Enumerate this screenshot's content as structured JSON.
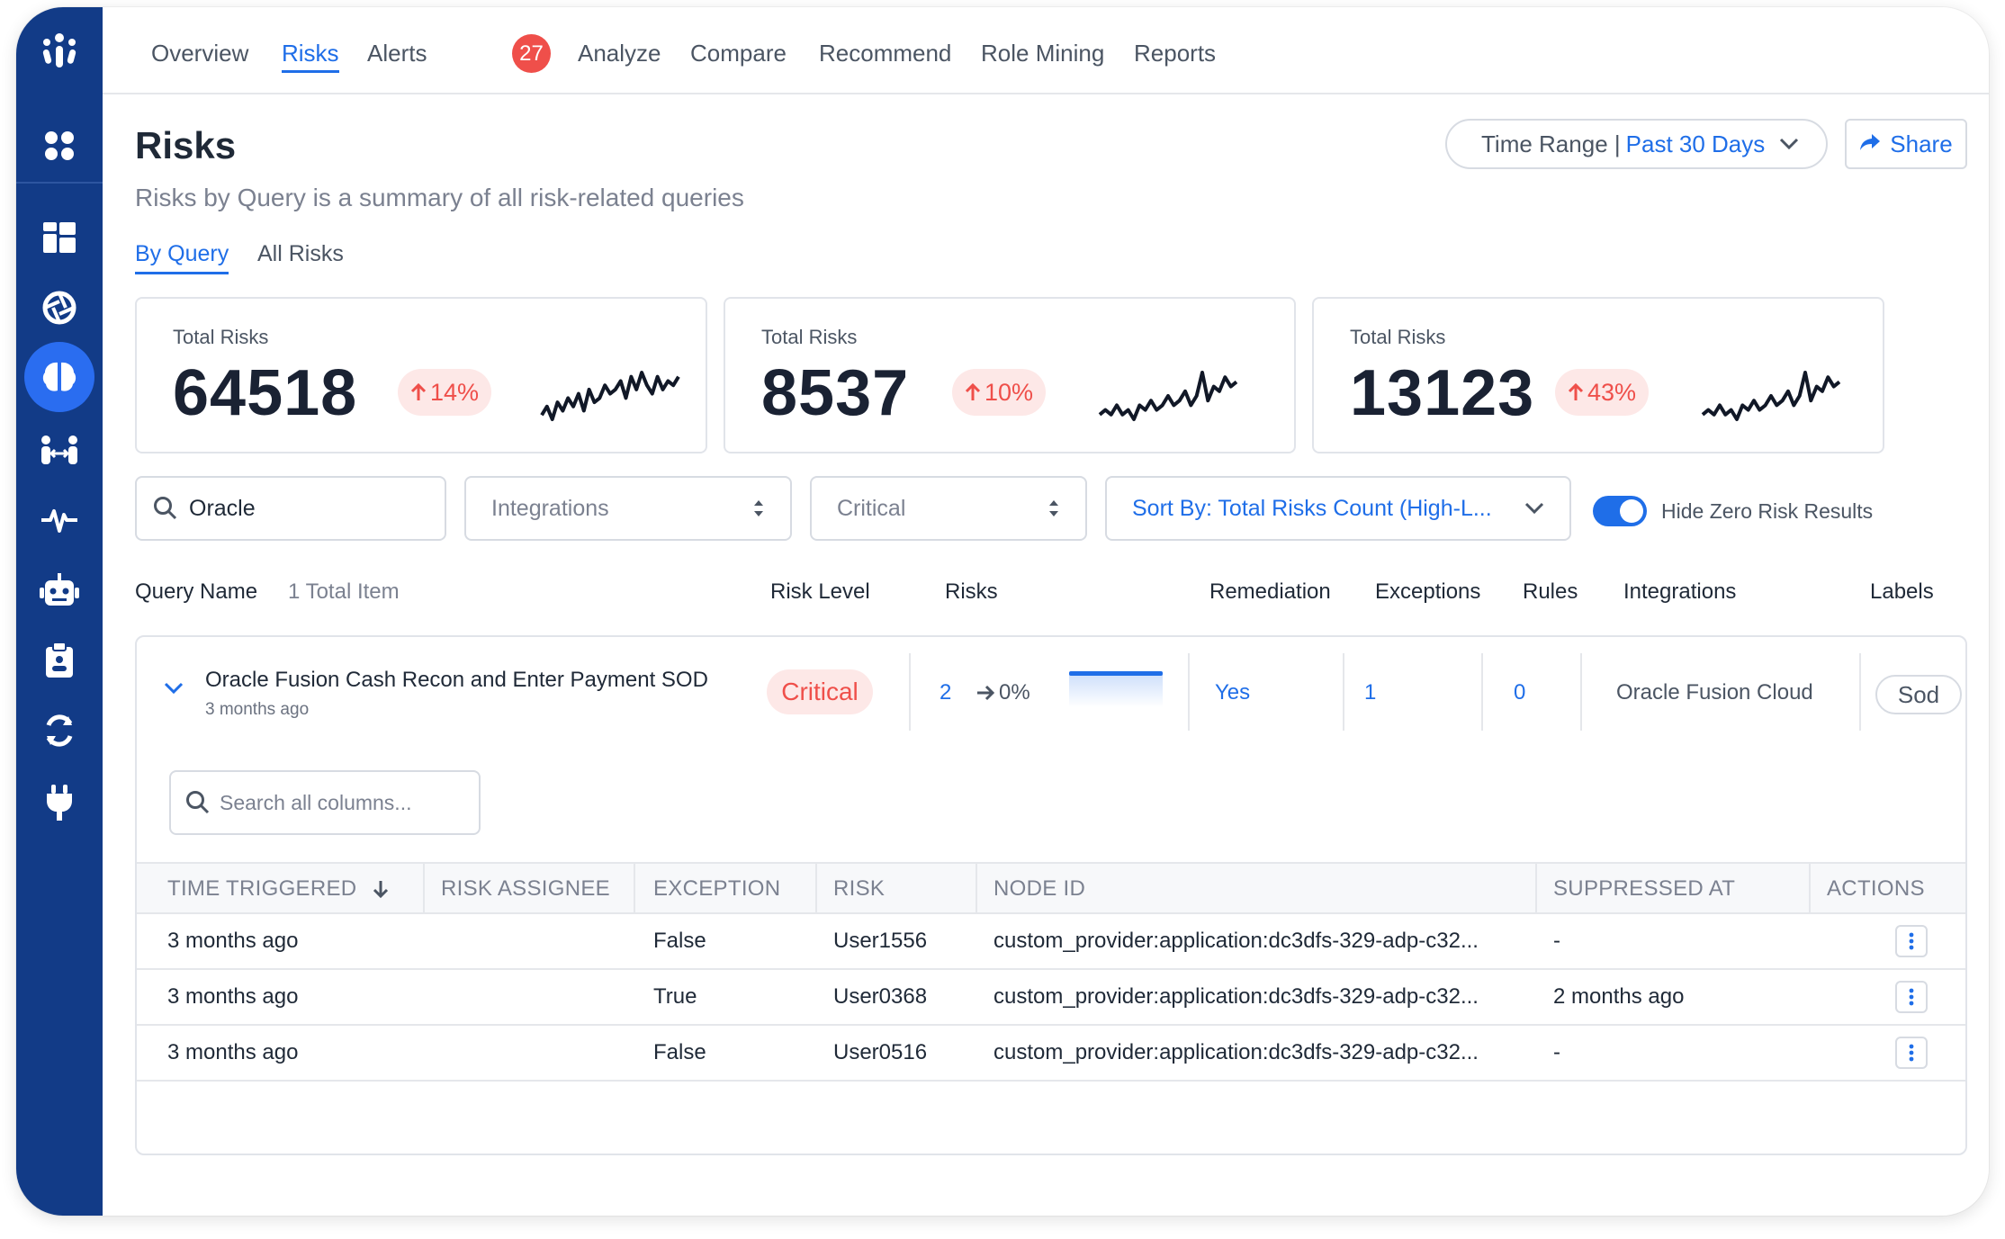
{
  "nav": {
    "items": [
      {
        "label": "Overview"
      },
      {
        "label": "Risks"
      },
      {
        "label": "Alerts"
      },
      {
        "label": "Analyze"
      },
      {
        "label": "Compare"
      },
      {
        "label": "Recommend"
      },
      {
        "label": "Role Mining"
      },
      {
        "label": "Reports"
      }
    ],
    "active": "Risks",
    "alerts_count": "27"
  },
  "sidebar": {
    "icons": [
      "logo-icon",
      "apps-grid-icon",
      "dashboard-icon",
      "aperture-icon",
      "brain-icon",
      "people-link-icon",
      "activity-pulse-icon",
      "robot-icon",
      "clipboard-user-icon",
      "sync-icon",
      "plug-icon"
    ],
    "active": "brain-icon"
  },
  "header": {
    "title": "Risks",
    "subtitle": "Risks by Query is a summary of all risk-related queries",
    "time_range_label": "Time Range |",
    "time_range_value": "Past 30 Days",
    "share_label": "Share"
  },
  "subtabs": [
    {
      "label": "By Query"
    },
    {
      "label": "All Risks"
    }
  ],
  "stats": [
    {
      "label": "Total Risks",
      "value": "64518",
      "change": "14%",
      "direction": "up",
      "spark": [
        3,
        5,
        2,
        6,
        4,
        7,
        5,
        8,
        4,
        9,
        6,
        7,
        10,
        8,
        9,
        11,
        7,
        12,
        9,
        13,
        10,
        8,
        12,
        9,
        11,
        10,
        12
      ]
    },
    {
      "label": "Total Risks",
      "value": "8537",
      "change": "10%",
      "direction": "up",
      "spark": [
        4,
        5,
        4,
        6,
        4,
        5,
        3,
        6,
        5,
        7,
        5,
        6,
        8,
        6,
        7,
        9,
        6,
        8,
        13,
        7,
        10,
        9,
        12,
        10,
        11
      ]
    },
    {
      "label": "Total Risks",
      "value": "13123",
      "change": "43%",
      "direction": "up",
      "spark": [
        4,
        5,
        4,
        6,
        4,
        5,
        3,
        6,
        5,
        7,
        5,
        6,
        8,
        6,
        7,
        9,
        6,
        8,
        13,
        7,
        10,
        9,
        12,
        10,
        11
      ]
    }
  ],
  "filters": {
    "search_value": "Oracle",
    "integrations_placeholder": "Integrations",
    "severity_placeholder": "Critical",
    "sort_label": "Sort By: Total Risks Count (High-L...",
    "hide_zero_label": "Hide Zero Risk Results",
    "hide_zero_on": true
  },
  "columns": {
    "query_name": "Query Name",
    "total_items": "1 Total Item",
    "risk_level": "Risk Level",
    "risks": "Risks",
    "remediation": "Remediation",
    "exceptions": "Exceptions",
    "rules": "Rules",
    "integrations": "Integrations",
    "labels": "Labels"
  },
  "row": {
    "name": "Oracle Fusion Cash Recon and Enter Payment SOD",
    "age": "3 months ago",
    "risk_level": "Critical",
    "risks": "2",
    "trend": "0%",
    "remediation": "Yes",
    "exceptions": "1",
    "rules": "0",
    "integration": "Oracle Fusion Cloud",
    "label": "Sod"
  },
  "detail": {
    "search_placeholder": "Search all columns...",
    "headers": [
      "TIME TRIGGERED",
      "RISK ASSIGNEE",
      "EXCEPTION",
      "RISK",
      "NODE ID",
      "SUPPRESSED AT",
      "ACTIONS"
    ],
    "rows": [
      {
        "time": "3 months ago",
        "assignee": "",
        "exception": "False",
        "risk": "User1556",
        "node": "custom_provider:application:dc3dfs-329-adp-c32...",
        "suppressed": "-"
      },
      {
        "time": "3 months ago",
        "assignee": "",
        "exception": "True",
        "risk": "User0368",
        "node": "custom_provider:application:dc3dfs-329-adp-c32...",
        "suppressed": "2 months ago"
      },
      {
        "time": "3 months ago",
        "assignee": "",
        "exception": "False",
        "risk": "User0516",
        "node": "custom_provider:application:dc3dfs-329-adp-c32...",
        "suppressed": "-"
      }
    ]
  },
  "colors": {
    "sidebar": "#123b87",
    "accent": "#1f6ee8",
    "danger": "#ef4f4a",
    "danger_bg": "#fde8e7"
  }
}
